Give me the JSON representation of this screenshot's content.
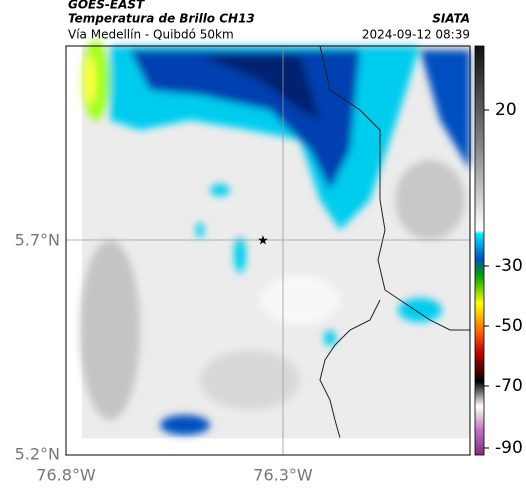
{
  "header": {
    "source": "GOES-EAST",
    "title": "Temperatura de Brillo CH13",
    "subtitle": "Vía Medellín - Quibdó 50km",
    "agency": "SIATA",
    "timestamp": "2024-09-12 08:39"
  },
  "axes": {
    "lat_labels": [
      "5.7°N",
      "5.2°N"
    ],
    "lon_labels": [
      "76.8°W",
      "76.3°W"
    ]
  },
  "colorbar": {
    "ticks": [
      20,
      -30,
      -50,
      -70,
      -90
    ]
  }
}
